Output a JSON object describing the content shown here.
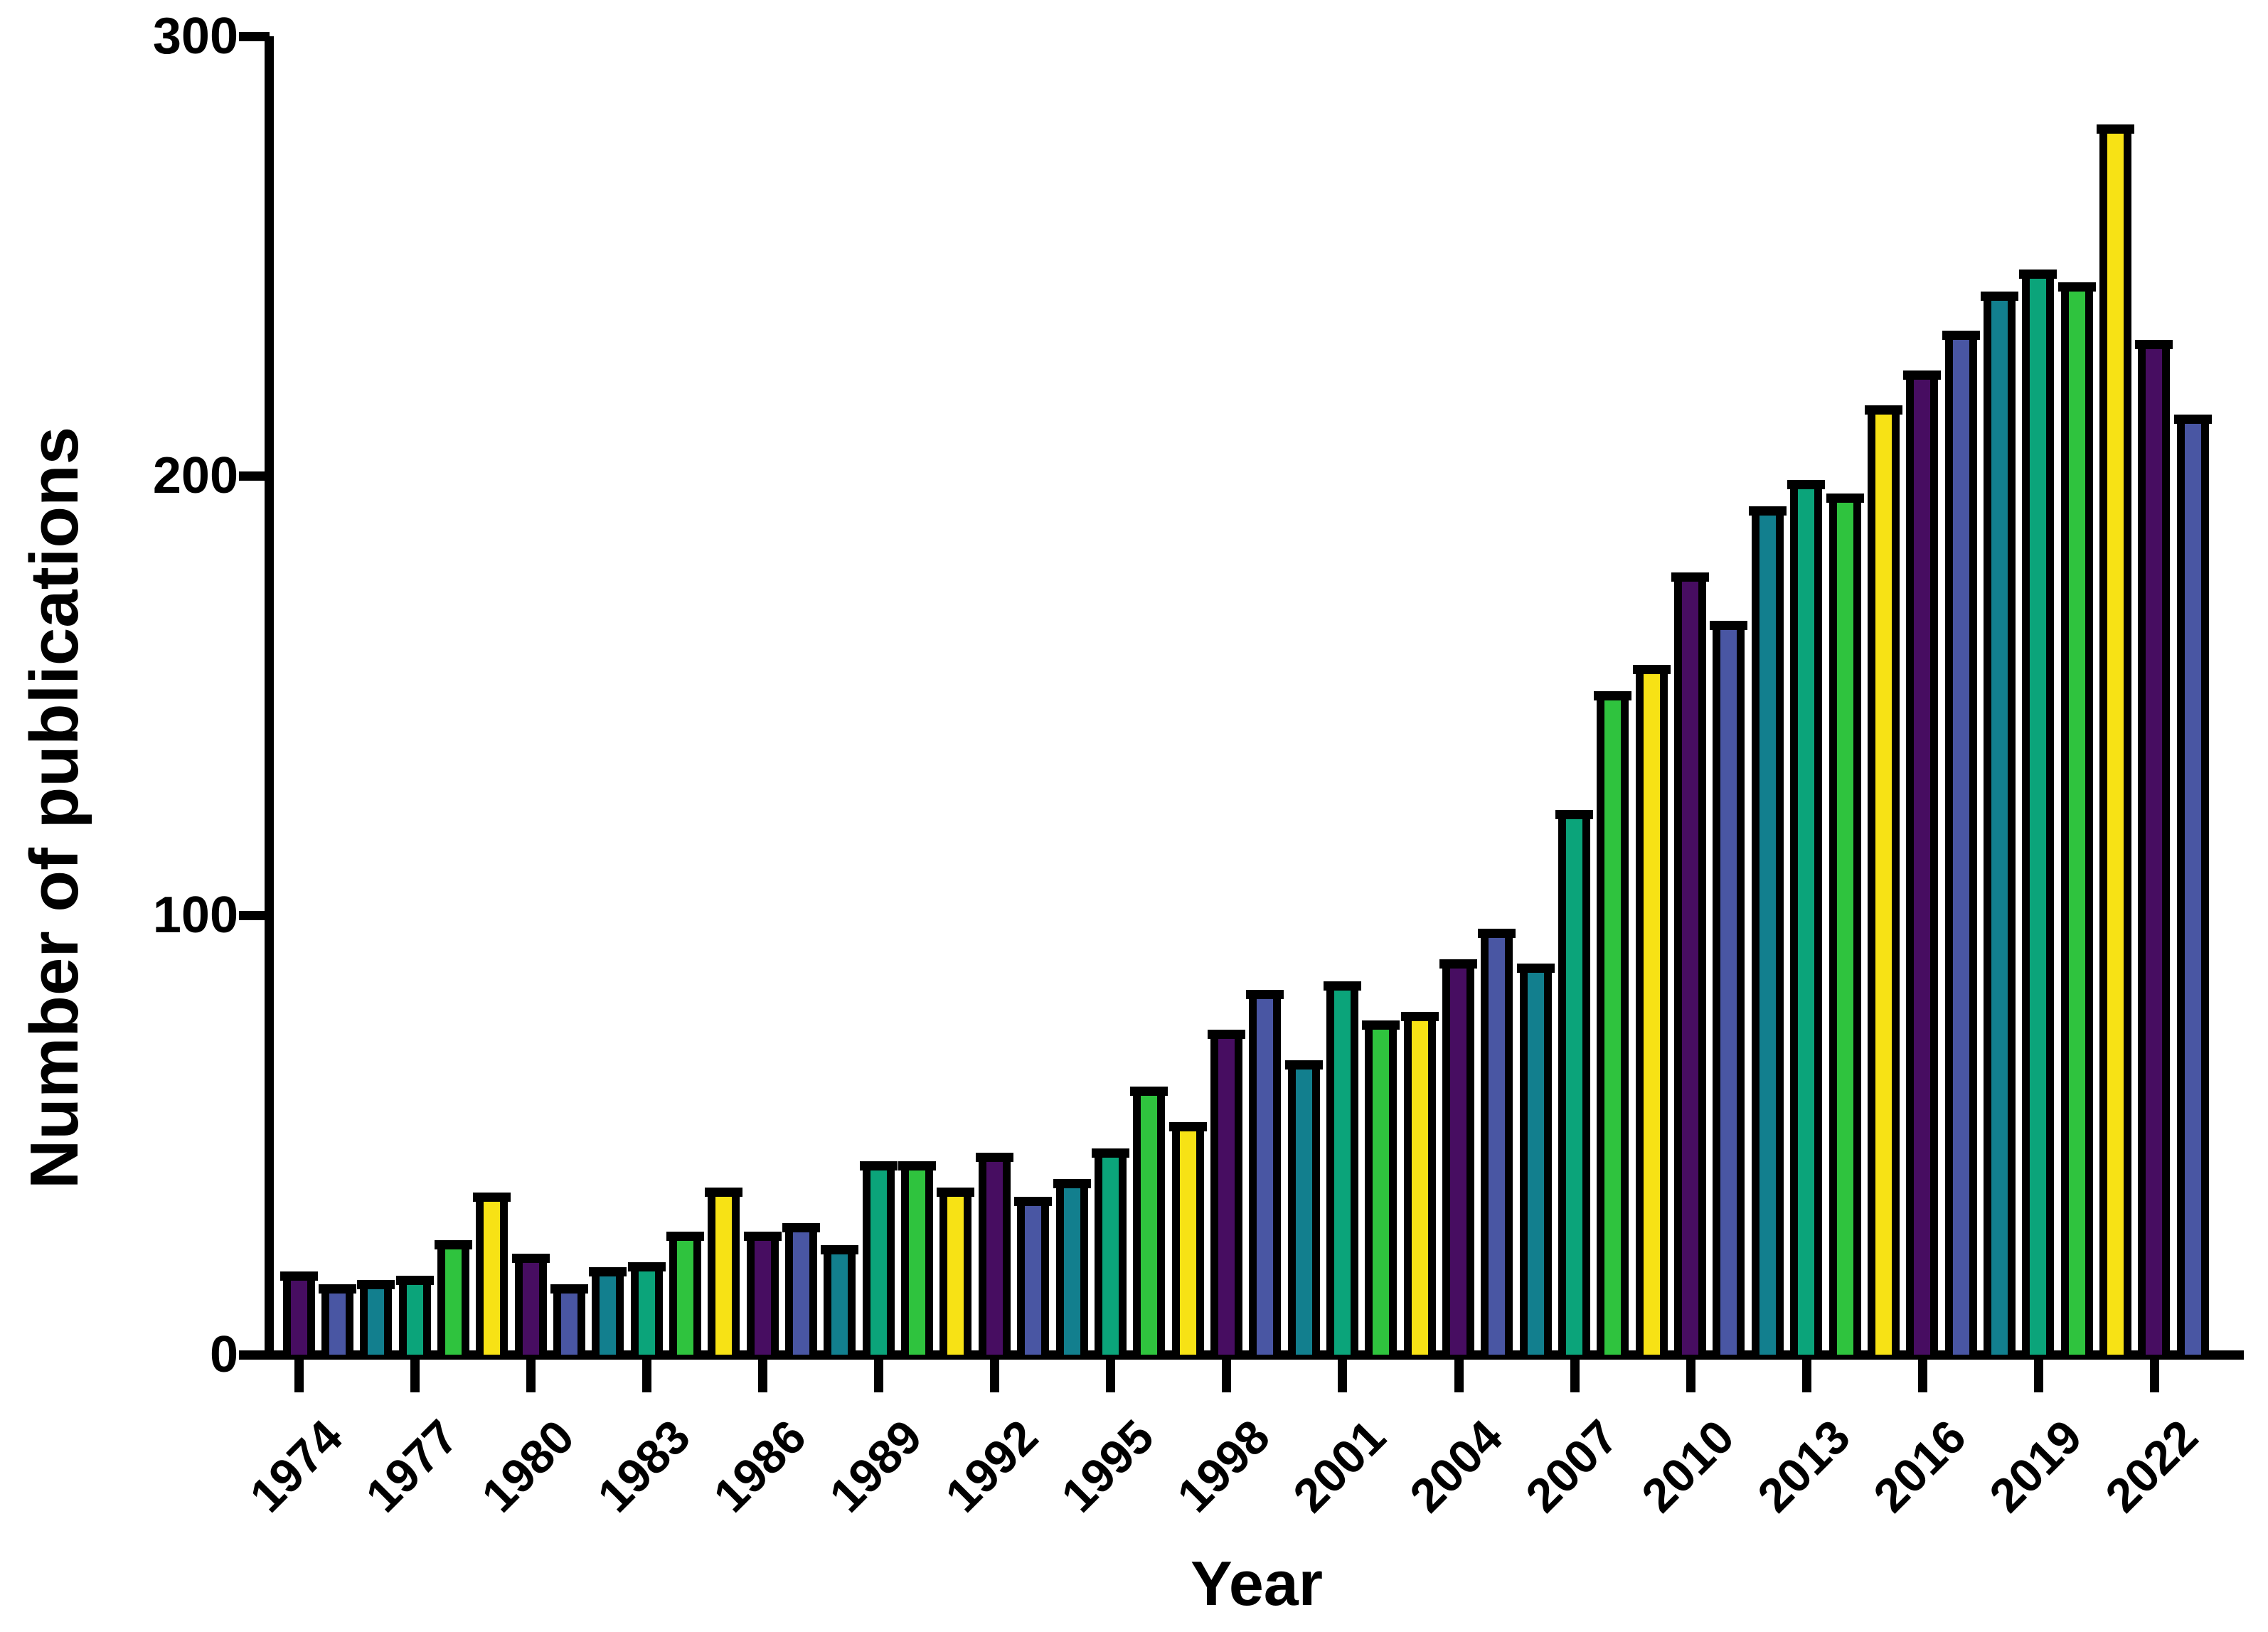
{
  "chart_data": {
    "type": "bar",
    "title": "",
    "xlabel": "Year",
    "ylabel": "Number of publications",
    "ylim": [
      0,
      300
    ],
    "yticks": [
      0,
      100,
      200,
      300
    ],
    "grid": false,
    "legend_position": "none",
    "years": [
      1974,
      1975,
      1976,
      1977,
      1978,
      1979,
      1980,
      1981,
      1982,
      1983,
      1984,
      1985,
      1986,
      1987,
      1988,
      1989,
      1990,
      1991,
      1992,
      1993,
      1994,
      1995,
      1996,
      1997,
      1998,
      1999,
      2000,
      2001,
      2002,
      2003,
      2004,
      2005,
      2006,
      2007,
      2008,
      2009,
      2010,
      2011,
      2012,
      2013,
      2014,
      2015,
      2016,
      2017,
      2018,
      2019,
      2020,
      2021,
      2022,
      2023
    ],
    "values": [
      18,
      15,
      16,
      17,
      25,
      36,
      22,
      15,
      19,
      20,
      27,
      37,
      27,
      29,
      24,
      43,
      43,
      37,
      45,
      35,
      39,
      46,
      60,
      52,
      73,
      82,
      66,
      84,
      75,
      77,
      89,
      96,
      88,
      123,
      150,
      156,
      177,
      166,
      192,
      198,
      195,
      215,
      223,
      232,
      241,
      246,
      243,
      279,
      230,
      213
    ],
    "xtick_years": [
      1974,
      1977,
      1980,
      1983,
      1986,
      1989,
      1992,
      1995,
      1998,
      2001,
      2004,
      2007,
      2010,
      2013,
      2016,
      2019,
      2022
    ],
    "bar_color_cycle": [
      "#470d61",
      "#4956a3",
      "#127f8e",
      "#0ba47a",
      "#2fc33e",
      "#f7e215"
    ],
    "bar_outline_color": "#000000",
    "axis_color": "#000000",
    "text_color": "#000000",
    "background_color": "#ffffff"
  }
}
